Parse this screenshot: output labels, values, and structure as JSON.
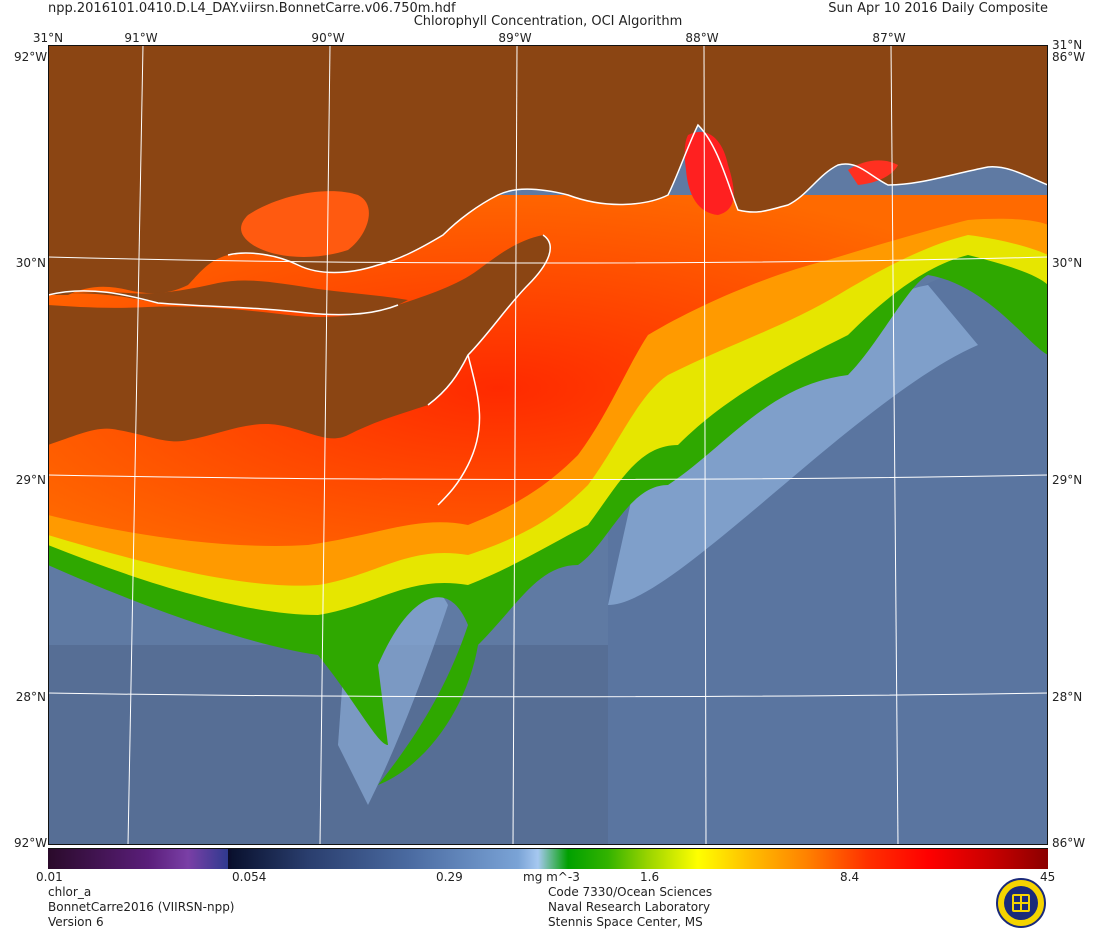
{
  "header": {
    "file": "npp.2016101.0410.D.L4_DAY.viirsn.BonnetCarre.v06.750m.hdf",
    "title": "Chlorophyll Concentration, OCI Algorithm",
    "date": "Sun Apr 10 2016 Daily Composite"
  },
  "map": {
    "lon_ticks": [
      "91°W",
      "90°W",
      "89°W",
      "88°W",
      "87°W"
    ],
    "lon_values": [
      -91,
      -90,
      -89,
      -88,
      -87
    ],
    "lat_ticks": [
      "31°N",
      "30°N",
      "29°N",
      "28°N"
    ],
    "lat_values": [
      31,
      30,
      29,
      28
    ],
    "edge_lon_label": "92°W",
    "edge_lon_label_right": "86°W",
    "colors": {
      "land": "#8b4513",
      "ocean": "#6d87ad",
      "coast": "#ffffff",
      "graticule": "#ffffff"
    }
  },
  "colorbar": {
    "variable": "chlor_a",
    "unit": "mg m^-3",
    "tick_labels": [
      "0.01",
      "0.054",
      "0.29",
      "1.6",
      "8.4",
      "45"
    ],
    "tick_values": [
      0.01,
      0.054,
      0.29,
      1.6,
      8.4,
      45
    ],
    "scale": "log"
  },
  "footer": {
    "left": [
      "chlor_a",
      "BonnetCarre2016 (VIIRSN-npp)",
      "Version 6"
    ],
    "right": [
      "Code 7330/Ocean Sciences",
      "Naval Research Laboratory",
      "Stennis Space Center, MS"
    ]
  },
  "logo_icon": "navy-seal-icon"
}
